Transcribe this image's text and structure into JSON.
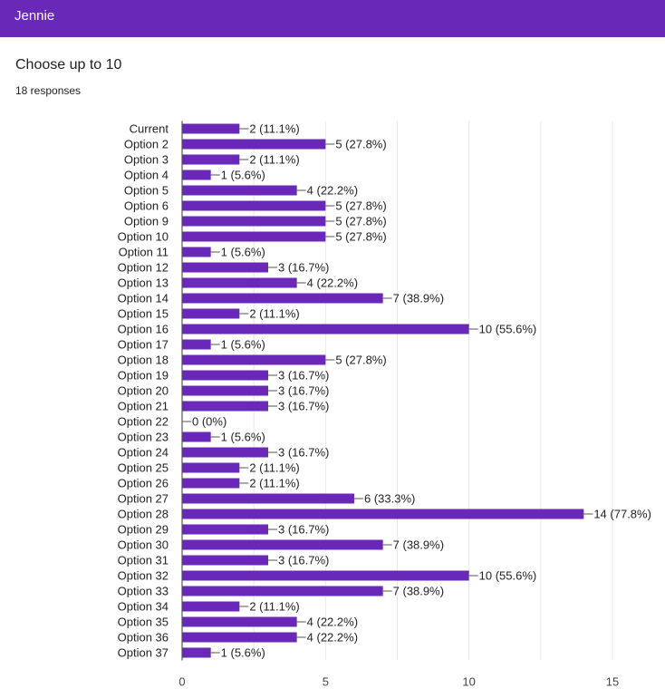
{
  "header": {
    "title": "Jennie"
  },
  "question": {
    "title": "Choose up to 10",
    "responses": "18 responses"
  },
  "colors": {
    "header": "#6a28b8",
    "bar": "#6a28b8",
    "grid": "#e8e8e8"
  },
  "chart_data": {
    "type": "bar",
    "orientation": "horizontal",
    "categories": [
      "Current",
      "Option 2",
      "Option 3",
      "Option 4",
      "Option 5",
      "Option 6",
      "Option 9",
      "Option 10",
      "Option 11",
      "Option 12",
      "Option 13",
      "Option 14",
      "Option 15",
      "Option 16",
      "Option 17",
      "Option 18",
      "Option 19",
      "Option 20",
      "Option 21",
      "Option 22",
      "Option 23",
      "Option 24",
      "Option 25",
      "Option 26",
      "Option 27",
      "Option 28",
      "Option 29",
      "Option 30",
      "Option 31",
      "Option 32",
      "Option 33",
      "Option 34",
      "Option 35",
      "Option 36",
      "Option 37"
    ],
    "values": [
      2,
      5,
      2,
      1,
      4,
      5,
      5,
      5,
      1,
      3,
      4,
      7,
      2,
      10,
      1,
      5,
      3,
      3,
      3,
      0,
      1,
      3,
      2,
      2,
      6,
      14,
      3,
      7,
      3,
      10,
      7,
      2,
      4,
      4,
      1
    ],
    "labels": [
      "2 (11.1%)",
      "5 (27.8%)",
      "2 (11.1%)",
      "1 (5.6%)",
      "4 (22.2%)",
      "5 (27.8%)",
      "5 (27.8%)",
      "5 (27.8%)",
      "1 (5.6%)",
      "3 (16.7%)",
      "4 (22.2%)",
      "7 (38.9%)",
      "2 (11.1%)",
      "10 (55.6%)",
      "1 (5.6%)",
      "5 (27.8%)",
      "3 (16.7%)",
      "3 (16.7%)",
      "3 (16.7%)",
      "0 (0%)",
      "1 (5.6%)",
      "3 (16.7%)",
      "2 (11.1%)",
      "2 (11.1%)",
      "6 (33.3%)",
      "14 (77.8%)",
      "3 (16.7%)",
      "7 (38.9%)",
      "3 (16.7%)",
      "10 (55.6%)",
      "7 (38.9%)",
      "2 (11.1%)",
      "4 (22.2%)",
      "4 (22.2%)",
      "1 (5.6%)"
    ],
    "xticks": [
      0,
      5,
      10,
      15
    ],
    "xlim": [
      0,
      15
    ],
    "grid": true,
    "title": "",
    "xlabel": "",
    "ylabel": ""
  }
}
